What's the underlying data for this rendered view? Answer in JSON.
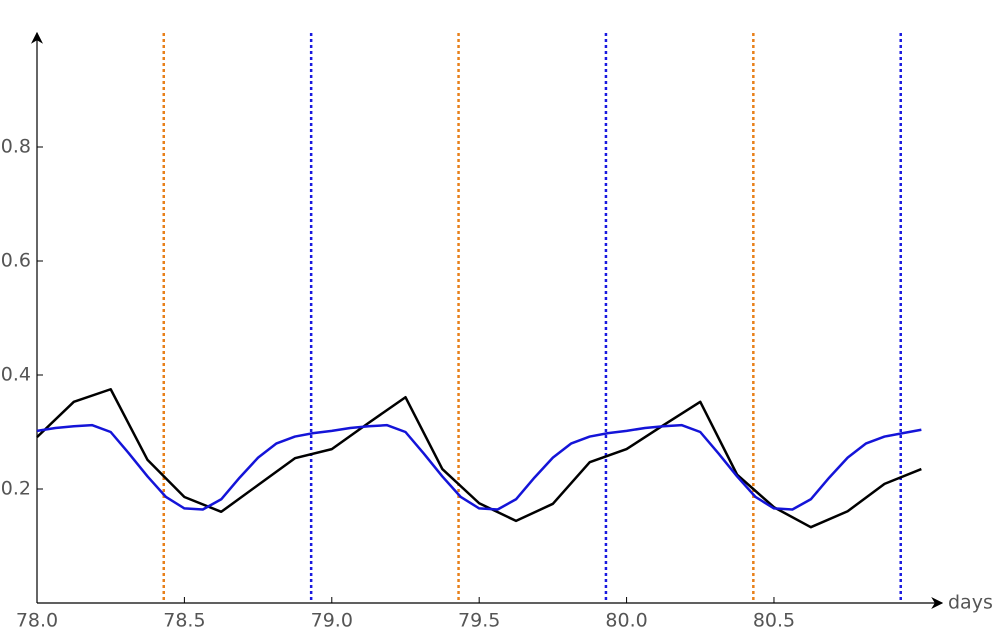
{
  "chart_data": {
    "type": "line",
    "x_label": "days",
    "xlim": [
      78,
      81.07
    ],
    "ylim": [
      0,
      1
    ],
    "xticks": [
      {
        "value": 78,
        "label": "78.0"
      },
      {
        "value": 78.5,
        "label": "78.5"
      },
      {
        "value": 79,
        "label": "79.0"
      },
      {
        "value": 79.5,
        "label": "79.5"
      },
      {
        "value": 80,
        "label": "80.0"
      },
      {
        "value": 80.5,
        "label": "80.5"
      }
    ],
    "yticks": [
      0.2,
      0.4,
      0.6,
      0.8
    ],
    "series": [
      {
        "color": "#000000",
        "x": [
          78,
          78.125,
          78.25,
          78.375,
          78.5,
          78.625,
          78.75,
          78.875,
          79,
          79.125,
          79.25,
          79.375,
          79.5,
          79.625,
          79.75,
          79.875,
          80,
          80.125,
          80.25,
          80.375,
          80.5,
          80.625,
          80.75,
          80.875,
          81
        ],
        "values": [
          0.291,
          0.353,
          0.375,
          0.251,
          0.186,
          0.16,
          0.207,
          0.254,
          0.27,
          0.316,
          0.361,
          0.235,
          0.175,
          0.144,
          0.174,
          0.247,
          0.27,
          0.312,
          0.353,
          0.225,
          0.168,
          0.133,
          0.161,
          0.209,
          0.235
        ]
      },
      {
        "color": "#1414d8",
        "x": [
          78,
          78.0625,
          78.125,
          78.1875,
          78.25,
          78.3125,
          78.375,
          78.4375,
          78.5,
          78.5625,
          78.625,
          78.6875,
          78.75,
          78.8125,
          78.875,
          78.9375,
          79,
          79.0625,
          79.125,
          79.1875,
          79.25,
          79.3125,
          79.375,
          79.4375,
          79.5,
          79.5625,
          79.625,
          79.6875,
          79.75,
          79.8125,
          79.875,
          79.9375,
          80,
          80.0625,
          80.125,
          80.1875,
          80.25,
          80.3125,
          80.375,
          80.4375,
          80.5,
          80.5625,
          80.625,
          80.6875,
          80.75,
          80.8125,
          80.875,
          80.9375,
          81
        ],
        "values": [
          0.302,
          0.307,
          0.31,
          0.312,
          0.3,
          0.262,
          0.222,
          0.186,
          0.166,
          0.164,
          0.182,
          0.22,
          0.255,
          0.28,
          0.292,
          0.298,
          0.302,
          0.307,
          0.31,
          0.312,
          0.3,
          0.262,
          0.222,
          0.186,
          0.166,
          0.164,
          0.182,
          0.22,
          0.255,
          0.28,
          0.292,
          0.298,
          0.302,
          0.307,
          0.31,
          0.312,
          0.3,
          0.262,
          0.222,
          0.186,
          0.166,
          0.164,
          0.182,
          0.22,
          0.255,
          0.28,
          0.292,
          0.298,
          0.304
        ]
      }
    ],
    "vlines": [
      {
        "color": "#e8801a",
        "x": [
          78.43,
          79.43,
          80.43
        ]
      },
      {
        "color": "#1a1ae0",
        "x": [
          78.93,
          79.93,
          80.93
        ]
      }
    ]
  }
}
